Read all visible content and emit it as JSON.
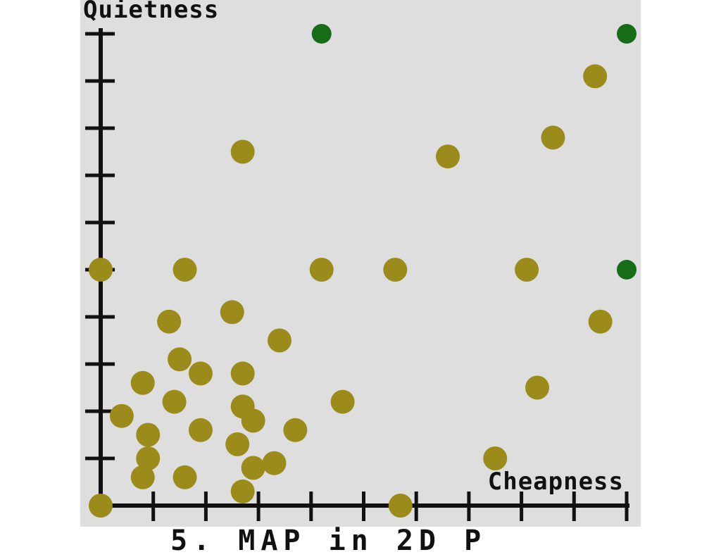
{
  "chart_data": {
    "type": "scatter",
    "xlabel": "Cheapness",
    "ylabel": "Quietness",
    "xlim": [
      0,
      10
    ],
    "ylim": [
      0,
      10
    ],
    "x_ticks": 10,
    "y_ticks": 10,
    "grid": false,
    "series": [
      {
        "color": "#9b8b1a",
        "points": [
          [
            0,
            0
          ],
          [
            0,
            5
          ],
          [
            1.6,
            5
          ],
          [
            4.2,
            5
          ],
          [
            5.6,
            5
          ],
          [
            8.1,
            5
          ],
          [
            2.7,
            7.5
          ],
          [
            6.6,
            7.4
          ],
          [
            8.6,
            7.8
          ],
          [
            9.4,
            9.1
          ],
          [
            1.3,
            3.9
          ],
          [
            2.5,
            4.1
          ],
          [
            3.4,
            3.5
          ],
          [
            1.5,
            3.1
          ],
          [
            0.8,
            2.6
          ],
          [
            1.9,
            2.8
          ],
          [
            2.7,
            2.8
          ],
          [
            1.4,
            2.2
          ],
          [
            2.7,
            2.1
          ],
          [
            0.4,
            1.9
          ],
          [
            0.9,
            1.5
          ],
          [
            1.9,
            1.6
          ],
          [
            2.9,
            1.8
          ],
          [
            3.7,
            1.6
          ],
          [
            0.9,
            1.0
          ],
          [
            0.8,
            0.6
          ],
          [
            1.6,
            0.6
          ],
          [
            2.6,
            1.3
          ],
          [
            2.9,
            0.8
          ],
          [
            3.3,
            0.9
          ],
          [
            2.7,
            0.3
          ],
          [
            4.6,
            2.2
          ],
          [
            8.3,
            2.5
          ],
          [
            9.5,
            3.9
          ],
          [
            7.5,
            1.0
          ],
          [
            5.7,
            0
          ]
        ]
      },
      {
        "color": "#176d17",
        "points": [
          [
            4.2,
            10
          ],
          [
            10,
            10
          ],
          [
            10,
            5
          ]
        ]
      }
    ]
  },
  "bottom_caption_fragment": "5. MAP in 2D P"
}
